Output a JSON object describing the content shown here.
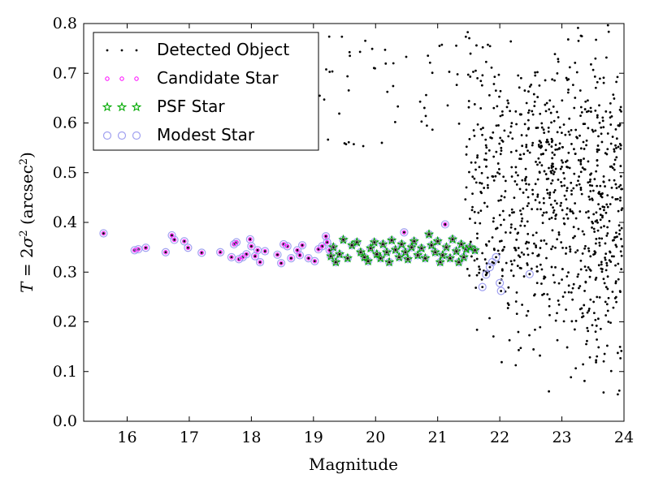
{
  "chart_data": {
    "type": "scatter",
    "title": "",
    "xlabel": "Magnitude",
    "ylabel_parts": {
      "T": "T",
      "eq": " = 2",
      "sigma": "σ",
      "sq": "2",
      "unit": " (arcsec",
      "unit_sq": "2",
      "close": ")"
    },
    "xlim": [
      15.3,
      24
    ],
    "ylim": [
      0.0,
      0.8
    ],
    "x_ticks": [
      "16",
      "17",
      "18",
      "19",
      "20",
      "21",
      "22",
      "23",
      "24"
    ],
    "y_ticks": [
      "0.0",
      "0.1",
      "0.2",
      "0.3",
      "0.4",
      "0.5",
      "0.6",
      "0.7",
      "0.8"
    ],
    "grid": false,
    "legend_position": "top-left",
    "series": [
      {
        "name": "Detected Object",
        "color": "#000000",
        "marker": "dot"
      },
      {
        "name": "Candidate Star",
        "color": "#ff00ff",
        "marker": "circle-small"
      },
      {
        "name": "PSF Star",
        "color": "#00aa00",
        "marker": "star"
      },
      {
        "name": "Modest Star",
        "color": "#9999ee",
        "marker": "circle-open"
      }
    ],
    "candidate_points": [
      [
        15.62,
        0.378
      ],
      [
        16.12,
        0.344
      ],
      [
        16.18,
        0.346
      ],
      [
        16.3,
        0.349
      ],
      [
        16.62,
        0.34
      ],
      [
        16.72,
        0.374
      ],
      [
        16.76,
        0.365
      ],
      [
        16.92,
        0.362
      ],
      [
        16.98,
        0.349
      ],
      [
        17.2,
        0.339
      ],
      [
        17.5,
        0.34
      ],
      [
        17.68,
        0.33
      ],
      [
        17.72,
        0.356
      ],
      [
        17.76,
        0.36
      ],
      [
        17.8,
        0.326
      ],
      [
        17.86,
        0.33
      ],
      [
        17.92,
        0.336
      ],
      [
        17.98,
        0.366
      ],
      [
        18.0,
        0.352
      ],
      [
        18.06,
        0.332
      ],
      [
        18.1,
        0.344
      ],
      [
        18.14,
        0.32
      ],
      [
        18.22,
        0.342
      ],
      [
        18.42,
        0.335
      ],
      [
        18.48,
        0.318
      ],
      [
        18.52,
        0.356
      ],
      [
        18.58,
        0.352
      ],
      [
        18.64,
        0.328
      ],
      [
        18.74,
        0.344
      ],
      [
        18.78,
        0.334
      ],
      [
        18.82,
        0.354
      ],
      [
        18.92,
        0.328
      ],
      [
        19.02,
        0.322
      ],
      [
        19.08,
        0.346
      ],
      [
        19.14,
        0.352
      ],
      [
        19.2,
        0.372
      ],
      [
        19.22,
        0.36
      ],
      [
        19.26,
        0.344
      ],
      [
        20.46,
        0.38
      ],
      [
        21.12,
        0.396
      ]
    ],
    "psf_points": [
      [
        19.28,
        0.332
      ],
      [
        19.32,
        0.35
      ],
      [
        19.36,
        0.32
      ],
      [
        19.42,
        0.336
      ],
      [
        19.48,
        0.365
      ],
      [
        19.55,
        0.328
      ],
      [
        19.62,
        0.354
      ],
      [
        19.7,
        0.36
      ],
      [
        19.76,
        0.34
      ],
      [
        19.82,
        0.33
      ],
      [
        19.88,
        0.322
      ],
      [
        19.92,
        0.348
      ],
      [
        19.98,
        0.36
      ],
      [
        20.02,
        0.336
      ],
      [
        20.08,
        0.328
      ],
      [
        20.12,
        0.356
      ],
      [
        20.18,
        0.34
      ],
      [
        20.22,
        0.32
      ],
      [
        20.26,
        0.364
      ],
      [
        20.32,
        0.345
      ],
      [
        20.38,
        0.33
      ],
      [
        20.42,
        0.356
      ],
      [
        20.48,
        0.34
      ],
      [
        20.52,
        0.326
      ],
      [
        20.58,
        0.35
      ],
      [
        20.62,
        0.362
      ],
      [
        20.68,
        0.334
      ],
      [
        20.74,
        0.348
      ],
      [
        20.8,
        0.328
      ],
      [
        20.86,
        0.376
      ],
      [
        20.9,
        0.354
      ],
      [
        20.96,
        0.34
      ],
      [
        21.0,
        0.362
      ],
      [
        21.04,
        0.32
      ],
      [
        21.08,
        0.334
      ],
      [
        21.14,
        0.35
      ],
      [
        21.2,
        0.328
      ],
      [
        21.24,
        0.366
      ],
      [
        21.3,
        0.342
      ],
      [
        21.34,
        0.32
      ],
      [
        21.38,
        0.356
      ],
      [
        21.42,
        0.33
      ],
      [
        21.46,
        0.346
      ],
      [
        21.52,
        0.35
      ],
      [
        21.6,
        0.344
      ]
    ],
    "modest_only_points": [
      [
        21.72,
        0.27
      ],
      [
        21.78,
        0.295
      ],
      [
        21.84,
        0.31
      ],
      [
        21.88,
        0.32
      ],
      [
        21.94,
        0.33
      ],
      [
        22.0,
        0.278
      ],
      [
        22.02,
        0.262
      ],
      [
        22.48,
        0.296
      ]
    ]
  }
}
